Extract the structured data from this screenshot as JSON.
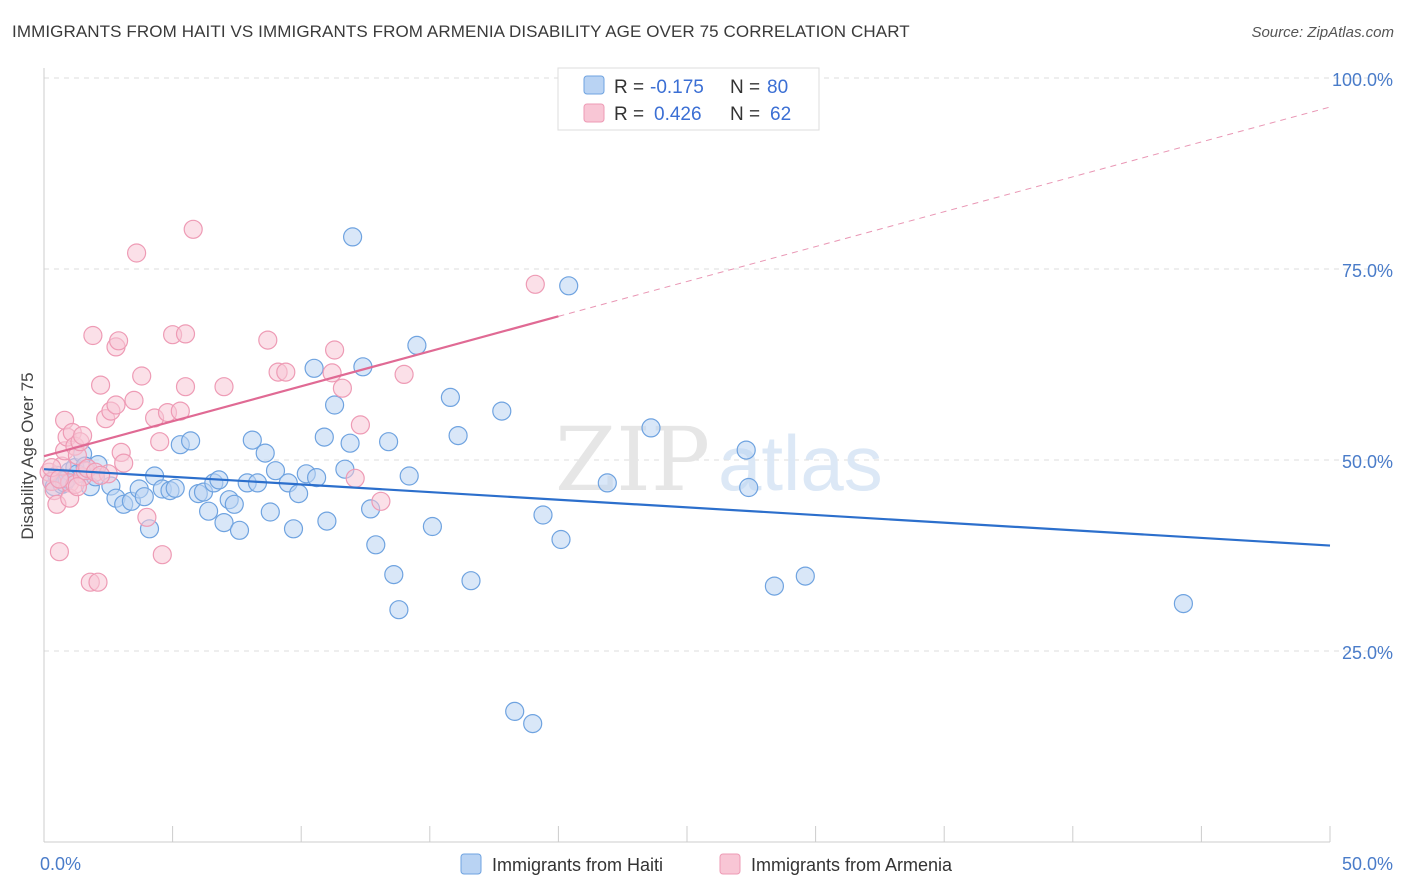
{
  "title": "IMMIGRANTS FROM HAITI VS IMMIGRANTS FROM ARMENIA DISABILITY AGE OVER 75 CORRELATION CHART",
  "source": "Source: ZipAtlas.com",
  "watermark": {
    "zip": "ZIP",
    "atlas": "atlas"
  },
  "chart_data": {
    "type": "scatter",
    "ylabel": "Disability Age Over 75",
    "xlim": [
      0,
      50
    ],
    "ylim": [
      0,
      100
    ],
    "x_tick_labels": [
      "0.0%",
      "50.0%"
    ],
    "y_ticks": [
      25,
      50,
      75,
      100
    ],
    "y_tick_labels": [
      "25.0%",
      "50.0%",
      "75.0%",
      "100.0%"
    ],
    "grid": true,
    "legend_placement": "top-center",
    "stats": [
      {
        "r_label": "R =",
        "r_value": "-0.175",
        "n_label": "N =",
        "n_value": "80"
      },
      {
        "r_label": "R =",
        "r_value": "0.426",
        "n_label": "N =",
        "n_value": "62"
      }
    ],
    "series": [
      {
        "name": "Immigrants from Haiti",
        "color": "#6fa3e0",
        "fill": "#b9d3f3",
        "line_color": "#2c6fcc",
        "trend": {
          "x0": 0,
          "y0": 48.8,
          "x1": 50,
          "y1": 38.8
        },
        "points": [
          [
            0.3,
            47.2
          ],
          [
            0.4,
            46.5
          ],
          [
            0.5,
            48.0
          ],
          [
            0.6,
            47.5
          ],
          [
            0.7,
            46.8
          ],
          [
            0.8,
            47.0
          ],
          [
            1.0,
            48.5
          ],
          [
            1.2,
            49.0
          ],
          [
            1.3,
            48.2
          ],
          [
            1.5,
            50.8
          ],
          [
            1.6,
            49.2
          ],
          [
            1.8,
            46.5
          ],
          [
            2.0,
            47.8
          ],
          [
            2.1,
            49.4
          ],
          [
            2.6,
            46.6
          ],
          [
            2.8,
            45.0
          ],
          [
            3.1,
            44.2
          ],
          [
            3.4,
            44.6
          ],
          [
            3.7,
            46.2
          ],
          [
            3.9,
            45.2
          ],
          [
            4.1,
            41.0
          ],
          [
            4.3,
            47.9
          ],
          [
            4.6,
            46.2
          ],
          [
            4.9,
            46.0
          ],
          [
            5.1,
            46.3
          ],
          [
            5.3,
            52.0
          ],
          [
            5.7,
            52.5
          ],
          [
            6.0,
            45.6
          ],
          [
            6.2,
            45.8
          ],
          [
            6.4,
            43.3
          ],
          [
            6.6,
            47.0
          ],
          [
            6.8,
            47.4
          ],
          [
            7.0,
            41.8
          ],
          [
            7.2,
            44.8
          ],
          [
            7.4,
            44.2
          ],
          [
            7.6,
            40.8
          ],
          [
            7.9,
            47.0
          ],
          [
            8.1,
            52.6
          ],
          [
            8.3,
            47.0
          ],
          [
            8.6,
            50.9
          ],
          [
            8.8,
            43.2
          ],
          [
            9.0,
            48.6
          ],
          [
            9.5,
            47.0
          ],
          [
            9.7,
            41.0
          ],
          [
            9.9,
            45.6
          ],
          [
            10.2,
            48.2
          ],
          [
            10.5,
            62.0
          ],
          [
            10.6,
            47.7
          ],
          [
            10.9,
            53.0
          ],
          [
            11.0,
            42.0
          ],
          [
            11.3,
            57.2
          ],
          [
            11.7,
            48.8
          ],
          [
            11.9,
            52.2
          ],
          [
            12.0,
            79.2
          ],
          [
            12.4,
            62.2
          ],
          [
            12.7,
            43.6
          ],
          [
            12.9,
            38.9
          ],
          [
            13.4,
            52.4
          ],
          [
            13.6,
            35.0
          ],
          [
            13.8,
            30.4
          ],
          [
            14.2,
            47.9
          ],
          [
            14.5,
            65.0
          ],
          [
            15.1,
            41.3
          ],
          [
            15.8,
            58.2
          ],
          [
            16.1,
            53.2
          ],
          [
            16.6,
            34.2
          ],
          [
            17.8,
            56.4
          ],
          [
            18.3,
            17.1
          ],
          [
            19.0,
            15.5
          ],
          [
            19.4,
            42.8
          ],
          [
            20.1,
            39.6
          ],
          [
            20.4,
            72.8
          ],
          [
            21.9,
            47.0
          ],
          [
            23.6,
            54.2
          ],
          [
            27.3,
            51.3
          ],
          [
            27.4,
            46.4
          ],
          [
            28.4,
            33.5
          ],
          [
            29.6,
            34.8
          ],
          [
            44.3,
            31.2
          ],
          [
            0.9,
            47.5
          ]
        ]
      },
      {
        "name": "Immigrants from Armenia",
        "color": "#ee9bb5",
        "fill": "#f8c6d5",
        "line_color": "#e06a94",
        "trend": {
          "x0": 0,
          "y0": 50.5,
          "x1": 20,
          "y1": 68.8
        },
        "trend_ext": {
          "x0": 20,
          "y0": 68.8,
          "x1": 50,
          "y1": 96.2
        },
        "points": [
          [
            0.2,
            48.4
          ],
          [
            0.3,
            47.2
          ],
          [
            0.4,
            46.0
          ],
          [
            0.5,
            44.2
          ],
          [
            0.6,
            38.0
          ],
          [
            0.7,
            49.2
          ],
          [
            0.8,
            51.2
          ],
          [
            0.8,
            55.2
          ],
          [
            0.9,
            53.0
          ],
          [
            1.0,
            47.0
          ],
          [
            1.0,
            45.0
          ],
          [
            1.1,
            53.6
          ],
          [
            1.2,
            46.8
          ],
          [
            1.2,
            51.8
          ],
          [
            1.3,
            50.6
          ],
          [
            1.4,
            52.4
          ],
          [
            1.5,
            47.8
          ],
          [
            1.5,
            53.2
          ],
          [
            1.6,
            48.6
          ],
          [
            1.7,
            48.9
          ],
          [
            1.8,
            34.0
          ],
          [
            1.9,
            66.3
          ],
          [
            2.0,
            48.4
          ],
          [
            2.1,
            34.0
          ],
          [
            2.2,
            59.8
          ],
          [
            2.4,
            55.4
          ],
          [
            2.5,
            48.2
          ],
          [
            2.6,
            56.4
          ],
          [
            2.8,
            57.2
          ],
          [
            2.8,
            64.8
          ],
          [
            2.9,
            65.6
          ],
          [
            3.0,
            51.0
          ],
          [
            3.1,
            49.6
          ],
          [
            3.5,
            57.8
          ],
          [
            3.6,
            77.1
          ],
          [
            3.8,
            61.0
          ],
          [
            4.0,
            42.5
          ],
          [
            4.3,
            55.5
          ],
          [
            4.5,
            52.4
          ],
          [
            4.6,
            37.6
          ],
          [
            4.8,
            56.2
          ],
          [
            5.0,
            66.4
          ],
          [
            5.3,
            56.4
          ],
          [
            5.5,
            59.6
          ],
          [
            5.5,
            66.5
          ],
          [
            5.8,
            80.2
          ],
          [
            7.0,
            59.6
          ],
          [
            8.7,
            65.7
          ],
          [
            9.1,
            61.5
          ],
          [
            9.4,
            61.5
          ],
          [
            11.2,
            61.4
          ],
          [
            11.3,
            64.4
          ],
          [
            11.6,
            59.4
          ],
          [
            12.1,
            47.6
          ],
          [
            12.3,
            54.6
          ],
          [
            13.1,
            44.6
          ],
          [
            14.0,
            61.2
          ],
          [
            19.1,
            73.0
          ],
          [
            0.3,
            49.0
          ],
          [
            0.6,
            47.5
          ],
          [
            1.3,
            46.5
          ],
          [
            2.2,
            48.0
          ]
        ]
      }
    ]
  }
}
